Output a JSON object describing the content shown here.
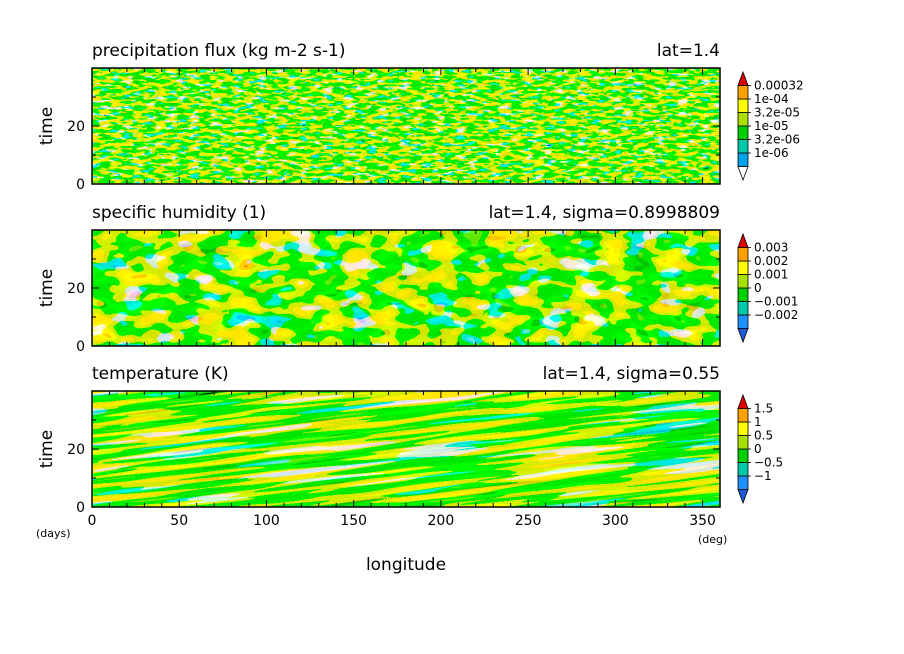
{
  "chart_data": [
    {
      "type": "heatmap",
      "title": "precipitation flux (kg m-2 s-1)",
      "subtitle": "lat=1.4",
      "ylabel": "time",
      "xlim": [
        0,
        360
      ],
      "ylim": [
        0,
        40
      ],
      "y_ticks": [
        0,
        20
      ],
      "colorbar": {
        "labels": [
          "0.00032",
          "1e-04",
          "3.2e-05",
          "1e-05",
          "3.2e-06",
          "1e-06"
        ],
        "colors": [
          "#ffffff",
          "#00a2e8",
          "#00c9a7",
          "#00d000",
          "#a8e000",
          "#ffff00",
          "#ffa000",
          "#e00000"
        ]
      }
    },
    {
      "type": "heatmap",
      "title": "specific humidity (1)",
      "subtitle": "lat=1.4, sigma=0.8998809",
      "ylabel": "time",
      "xlim": [
        0,
        360
      ],
      "ylim": [
        0,
        40
      ],
      "y_ticks": [
        0,
        20
      ],
      "colorbar": {
        "labels": [
          "0.003",
          "0.002",
          "0.001",
          "0",
          "−0.001",
          "−0.002"
        ],
        "colors": [
          "#1e5bd8",
          "#1e90ff",
          "#00c9a7",
          "#00d000",
          "#a8e000",
          "#ffff00",
          "#ffa000",
          "#e00000"
        ]
      }
    },
    {
      "type": "heatmap",
      "title": "temperature (K)",
      "subtitle": "lat=1.4, sigma=0.55",
      "ylabel": "time",
      "xlabel": "longitude",
      "x_unit": "(deg)",
      "y_unit": "(days)",
      "xlim": [
        0,
        360
      ],
      "ylim": [
        0,
        40
      ],
      "x_ticks": [
        0,
        50,
        100,
        150,
        200,
        250,
        300,
        350
      ],
      "y_ticks": [
        0,
        20
      ],
      "colorbar": {
        "labels": [
          "1.5",
          "1",
          "0.5",
          "0",
          "−0.5",
          "−1"
        ],
        "colors": [
          "#1e5bd8",
          "#1e90ff",
          "#00c9a7",
          "#00d000",
          "#a8e000",
          "#ffff00",
          "#ffa000",
          "#e00000"
        ]
      }
    }
  ]
}
